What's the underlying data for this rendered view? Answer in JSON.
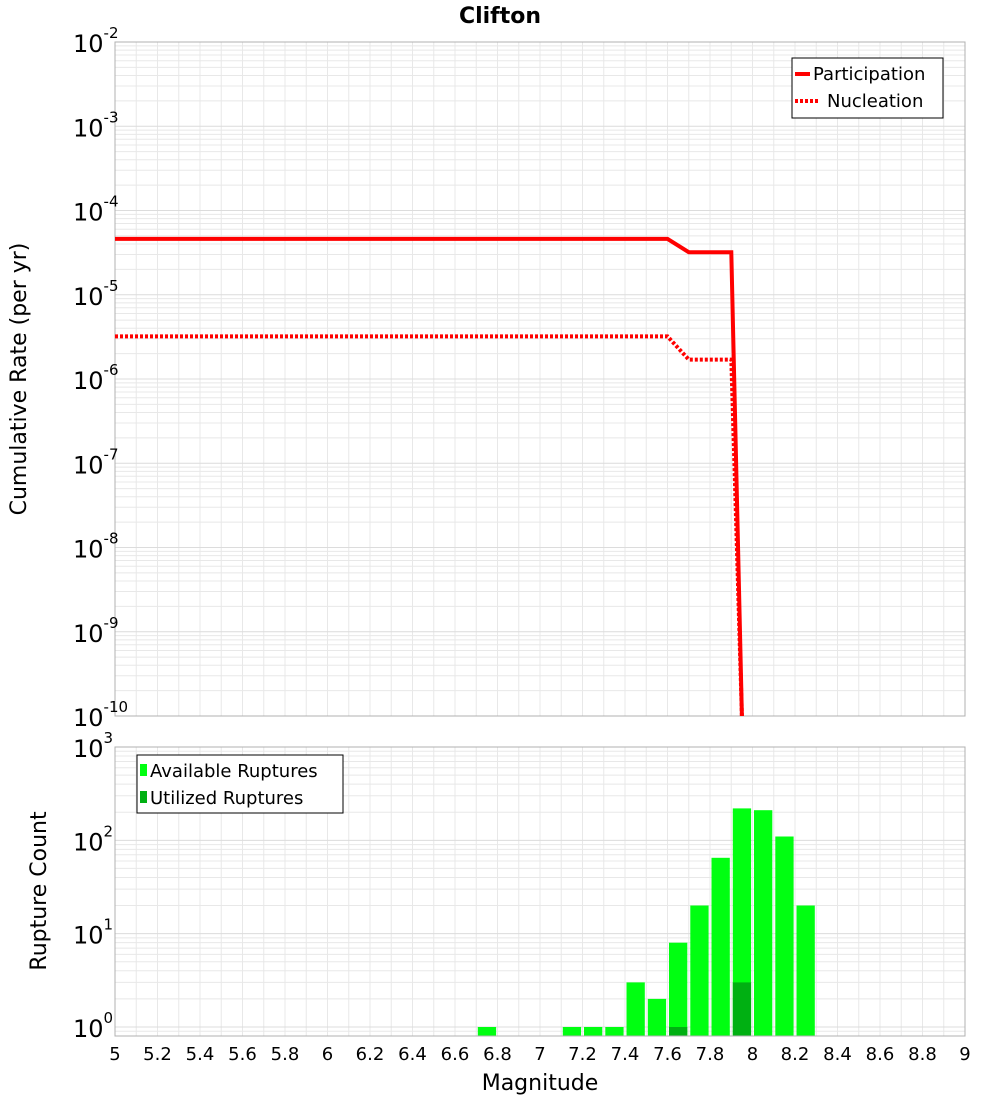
{
  "chart_data": [
    {
      "type": "line",
      "title": "Clifton",
      "xlabel": "Magnitude",
      "ylabel": "Cumulative Rate (per yr)",
      "yscale": "log",
      "xlim": [
        5,
        9
      ],
      "ylim": [
        1e-10,
        0.01
      ],
      "y_tick_labels": [
        {
          "base": "10",
          "exp": "-2"
        },
        {
          "base": "10",
          "exp": "-3"
        },
        {
          "base": "10",
          "exp": "-4"
        },
        {
          "base": "10",
          "exp": "-5"
        },
        {
          "base": "10",
          "exp": "-6"
        },
        {
          "base": "10",
          "exp": "-7"
        },
        {
          "base": "10",
          "exp": "-8"
        },
        {
          "base": "10",
          "exp": "-9"
        },
        {
          "base": "10",
          "exp": "-10"
        }
      ],
      "legend": {
        "position": "top-right",
        "entries": [
          "Participation",
          "Nucleation"
        ]
      },
      "series": [
        {
          "name": "Participation",
          "color": "#ff0000",
          "style": "solid",
          "x": [
            5.0,
            7.6,
            7.7,
            7.9,
            7.95
          ],
          "y": [
            4.6e-05,
            4.6e-05,
            3.2e-05,
            3.2e-05,
            1e-10
          ]
        },
        {
          "name": "Nucleation",
          "color": "#ff0000",
          "style": "dotted",
          "x": [
            5.0,
            7.6,
            7.7,
            7.9,
            7.95
          ],
          "y": [
            3.2e-06,
            3.2e-06,
            1.7e-06,
            1.7e-06,
            1e-10
          ]
        }
      ]
    },
    {
      "type": "bar",
      "xlabel": "Magnitude",
      "ylabel": "Rupture Count",
      "yscale": "log",
      "xlim": [
        5,
        9
      ],
      "ylim": [
        0.8,
        1000
      ],
      "x_ticks": [
        "5",
        "5.2",
        "5.4",
        "5.6",
        "5.8",
        "6",
        "6.2",
        "6.4",
        "6.6",
        "6.8",
        "7",
        "7.2",
        "7.4",
        "7.6",
        "7.8",
        "8",
        "8.2",
        "8.4",
        "8.6",
        "8.8",
        "9"
      ],
      "y_tick_labels": [
        {
          "base": "10",
          "exp": "3"
        },
        {
          "base": "10",
          "exp": "2"
        },
        {
          "base": "10",
          "exp": "1"
        },
        {
          "base": "10",
          "exp": "0"
        }
      ],
      "legend": {
        "position": "top-left",
        "entries": [
          "Available Ruptures",
          "Utilized Ruptures"
        ]
      },
      "bin_width": 0.1,
      "series": [
        {
          "name": "Available Ruptures",
          "color": "#00ff11",
          "x": [
            6.75,
            7.15,
            7.25,
            7.35,
            7.45,
            7.55,
            7.65,
            7.75,
            7.85,
            7.95,
            8.05,
            8.15,
            8.25
          ],
          "values": [
            1,
            1,
            1,
            1,
            3,
            2,
            8,
            20,
            65,
            220,
            210,
            110,
            20
          ]
        },
        {
          "name": "Utilized Ruptures",
          "color": "#00b012",
          "x": [
            7.65,
            7.95
          ],
          "values": [
            1,
            3
          ]
        }
      ]
    }
  ]
}
